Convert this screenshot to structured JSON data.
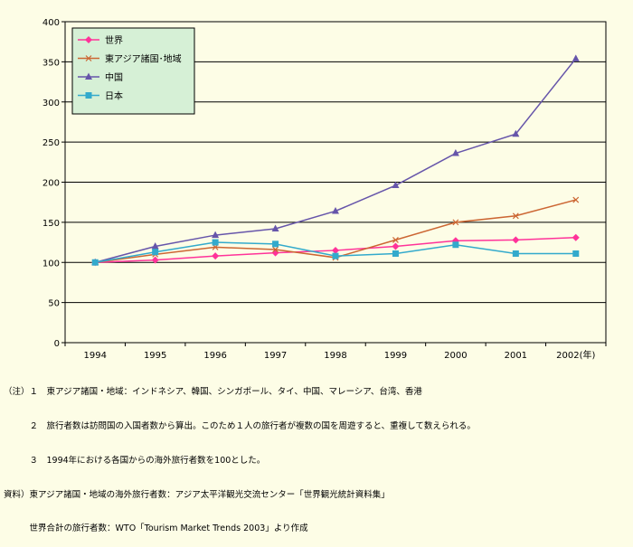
{
  "chart_data": {
    "type": "line",
    "x": [
      "1994",
      "1995",
      "1996",
      "1997",
      "1998",
      "1999",
      "2000",
      "2001",
      "2002(年)"
    ],
    "ylim": [
      0,
      400
    ],
    "yticks": [
      0,
      50,
      100,
      150,
      200,
      250,
      300,
      350,
      400
    ],
    "grid": true,
    "legend_position": "top-left",
    "series": [
      {
        "name": "世界",
        "color": "#ff3399",
        "marker": "diamond",
        "values": [
          100,
          103,
          108,
          112,
          115,
          120,
          127,
          128,
          131
        ]
      },
      {
        "name": "東アジア諸国･地域",
        "color": "#cc6633",
        "marker": "x",
        "values": [
          100,
          110,
          119,
          116,
          106,
          128,
          150,
          158,
          178
        ]
      },
      {
        "name": "中国",
        "color": "#6655aa",
        "marker": "triangle",
        "values": [
          100,
          120,
          134,
          142,
          164,
          196,
          236,
          260,
          354
        ]
      },
      {
        "name": "日本",
        "color": "#33aacc",
        "marker": "square",
        "values": [
          100,
          113,
          125,
          123,
          108,
          111,
          122,
          111,
          111
        ]
      }
    ]
  },
  "notes": [
    "（注）１　東アジア諸国・地域：インドネシア、韓国、シンガポール、タイ、中国、マレーシア、台湾、香港",
    "　　　２　旅行者数は訪問国の入国者数から算出。このため１人の旅行者が複数の国を周遊すると、重複して数えられる。",
    "　　　３　1994年における各国からの海外旅行者数を100とした。",
    "資料）東アジア諸国・地域の海外旅行者数：アジア太平洋観光交流センター「世界観光統計資料集」",
    "　　　世界合計の旅行者数：WTO「Tourism Market Trends 2003」より作成"
  ]
}
